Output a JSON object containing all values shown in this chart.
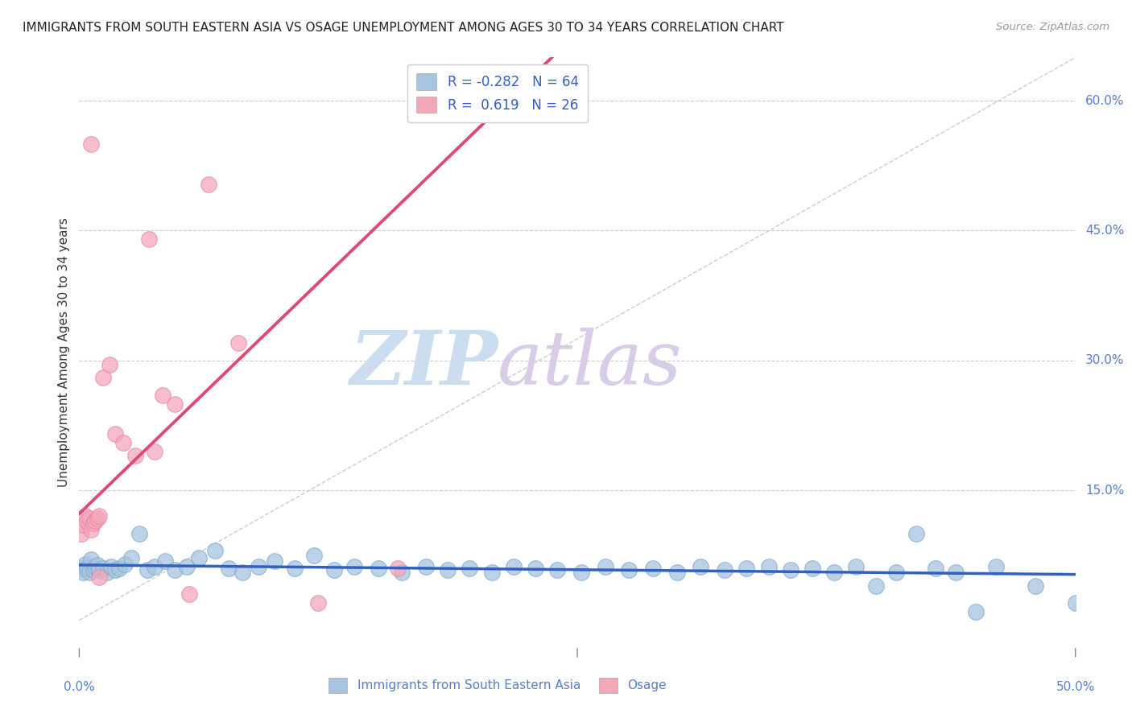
{
  "title": "IMMIGRANTS FROM SOUTH EASTERN ASIA VS OSAGE UNEMPLOYMENT AMONG AGES 30 TO 34 YEARS CORRELATION CHART",
  "source": "Source: ZipAtlas.com",
  "ylabel": "Unemployment Among Ages 30 to 34 years",
  "xmin": 0.0,
  "xmax": 0.5,
  "ymin": -0.03,
  "ymax": 0.65,
  "blue_R": -0.282,
  "blue_N": 64,
  "pink_R": 0.619,
  "pink_N": 26,
  "blue_color": "#a8c4e0",
  "pink_color": "#f4a7b9",
  "blue_edge_color": "#7aaad0",
  "pink_edge_color": "#e888a8",
  "blue_line_color": "#3060c0",
  "pink_line_color": "#e04878",
  "ytick_vals": [
    0.15,
    0.3,
    0.45,
    0.6
  ],
  "ytick_labels": [
    "15.0%",
    "30.0%",
    "45.0%",
    "60.0%"
  ],
  "blue_scatter_x": [
    0.001,
    0.002,
    0.003,
    0.004,
    0.005,
    0.006,
    0.007,
    0.008,
    0.009,
    0.01,
    0.012,
    0.014,
    0.016,
    0.018,
    0.02,
    0.023,
    0.026,
    0.03,
    0.034,
    0.038,
    0.043,
    0.048,
    0.054,
    0.06,
    0.068,
    0.075,
    0.082,
    0.09,
    0.098,
    0.108,
    0.118,
    0.128,
    0.138,
    0.15,
    0.162,
    0.174,
    0.185,
    0.196,
    0.207,
    0.218,
    0.229,
    0.24,
    0.252,
    0.264,
    0.276,
    0.288,
    0.3,
    0.312,
    0.324,
    0.335,
    0.346,
    0.357,
    0.368,
    0.379,
    0.39,
    0.4,
    0.41,
    0.42,
    0.43,
    0.44,
    0.45,
    0.46,
    0.48,
    0.5
  ],
  "blue_scatter_y": [
    0.06,
    0.055,
    0.065,
    0.06,
    0.055,
    0.07,
    0.058,
    0.062,
    0.064,
    0.058,
    0.06,
    0.055,
    0.062,
    0.058,
    0.06,
    0.065,
    0.072,
    0.1,
    0.058,
    0.062,
    0.068,
    0.058,
    0.062,
    0.072,
    0.08,
    0.06,
    0.055,
    0.062,
    0.068,
    0.06,
    0.075,
    0.058,
    0.062,
    0.06,
    0.055,
    0.062,
    0.058,
    0.06,
    0.055,
    0.062,
    0.06,
    0.058,
    0.055,
    0.062,
    0.058,
    0.06,
    0.055,
    0.062,
    0.058,
    0.06,
    0.062,
    0.058,
    0.06,
    0.055,
    0.062,
    0.04,
    0.055,
    0.1,
    0.06,
    0.055,
    0.01,
    0.062,
    0.04,
    0.02
  ],
  "pink_scatter_x": [
    0.001,
    0.002,
    0.003,
    0.004,
    0.005,
    0.006,
    0.007,
    0.008,
    0.009,
    0.01,
    0.012,
    0.015,
    0.018,
    0.022,
    0.028,
    0.035,
    0.038,
    0.042,
    0.048,
    0.055,
    0.065,
    0.08,
    0.12,
    0.16,
    0.01,
    0.006
  ],
  "pink_scatter_y": [
    0.1,
    0.11,
    0.12,
    0.115,
    0.118,
    0.105,
    0.112,
    0.115,
    0.118,
    0.12,
    0.28,
    0.295,
    0.215,
    0.205,
    0.19,
    0.44,
    0.195,
    0.26,
    0.25,
    0.03,
    0.503,
    0.32,
    0.02,
    0.06,
    0.05,
    0.55
  ]
}
